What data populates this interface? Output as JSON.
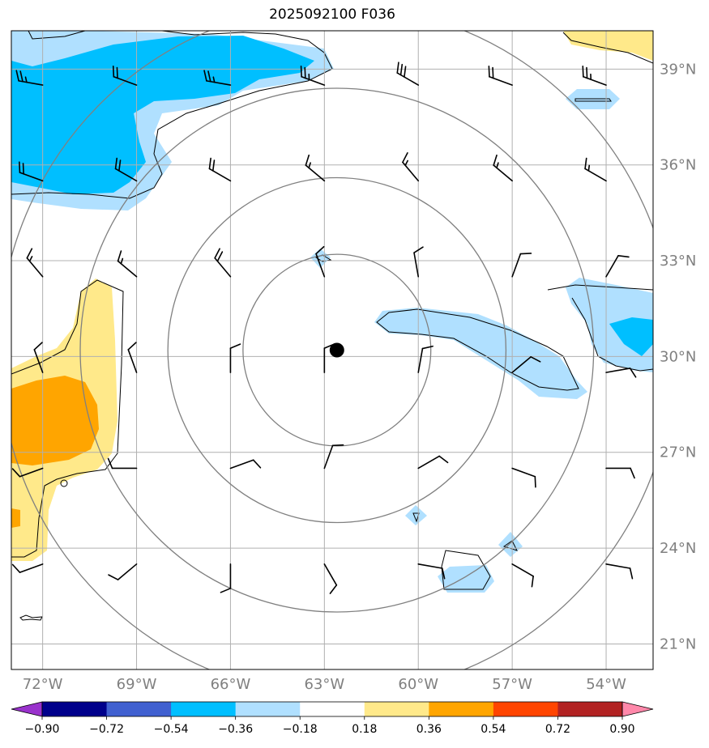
{
  "title": "2025092100 F036",
  "map": {
    "lon_range": [
      -73,
      -52.5
    ],
    "lat_range": [
      20.2,
      40.2
    ],
    "lon_ticks": [
      -72,
      -69,
      -66,
      -63,
      -60,
      -57,
      -54
    ],
    "lon_labels": [
      "72°W",
      "69°W",
      "66°W",
      "63°W",
      "60°W",
      "57°W",
      "54°W"
    ],
    "lat_ticks": [
      21,
      24,
      27,
      30,
      33,
      36,
      39
    ],
    "lat_labels": [
      "21°N",
      "24°N",
      "27°N",
      "30°N",
      "33°N",
      "36°N",
      "39°N"
    ],
    "center": {
      "lon": -62.6,
      "lat": 30.2
    },
    "range_rings_deg": [
      3,
      5.4,
      8.2,
      10.8
    ],
    "colors": {
      "grid": "#b0b0b0",
      "ring": "#808080",
      "center_marker": "#000000",
      "coast": "#000000"
    }
  },
  "colorbar": {
    "levels": [
      -0.9,
      -0.72,
      -0.54,
      -0.36,
      -0.18,
      0.18,
      0.36,
      0.54,
      0.72,
      0.9
    ],
    "tick_labels": [
      "−0.90",
      "−0.72",
      "−0.54",
      "−0.36",
      "−0.18",
      "0.18",
      "0.36",
      "0.54",
      "0.72",
      "0.90"
    ],
    "colors": [
      "#9932cc",
      "#00008b",
      "#4060d0",
      "#00bfff",
      "#b0e0ff",
      "#ffffff",
      "#ffe98a",
      "#ffa500",
      "#ff4500",
      "#b22222",
      "#ff88aa"
    ]
  },
  "wind_barbs": [
    {
      "lon": -72,
      "lat": 38.5,
      "dir": 280,
      "spd": 25
    },
    {
      "lon": -69,
      "lat": 38.5,
      "dir": 290,
      "spd": 20
    },
    {
      "lon": -66,
      "lat": 38.5,
      "dir": 280,
      "spd": 25
    },
    {
      "lon": -63,
      "lat": 38.5,
      "dir": 290,
      "spd": 25
    },
    {
      "lon": -60,
      "lat": 38.5,
      "dir": 300,
      "spd": 30
    },
    {
      "lon": -57,
      "lat": 38.5,
      "dir": 290,
      "spd": 20
    },
    {
      "lon": -54,
      "lat": 38.5,
      "dir": 290,
      "spd": 25
    },
    {
      "lon": -72,
      "lat": 35.5,
      "dir": 290,
      "spd": 20
    },
    {
      "lon": -69,
      "lat": 35.5,
      "dir": 300,
      "spd": 20
    },
    {
      "lon": -66,
      "lat": 35.5,
      "dir": 300,
      "spd": 20
    },
    {
      "lon": -63,
      "lat": 35.5,
      "dir": 310,
      "spd": 15
    },
    {
      "lon": -60,
      "lat": 35.5,
      "dir": 320,
      "spd": 15
    },
    {
      "lon": -57,
      "lat": 35.5,
      "dir": 310,
      "spd": 15
    },
    {
      "lon": -54,
      "lat": 35.5,
      "dir": 300,
      "spd": 15
    },
    {
      "lon": -72,
      "lat": 32.5,
      "dir": 320,
      "spd": 15
    },
    {
      "lon": -69,
      "lat": 32.5,
      "dir": 310,
      "spd": 15
    },
    {
      "lon": -66,
      "lat": 32.5,
      "dir": 320,
      "spd": 20
    },
    {
      "lon": -63,
      "lat": 32.5,
      "dir": 340,
      "spd": 10
    },
    {
      "lon": -60,
      "lat": 32.5,
      "dir": 350,
      "spd": 10
    },
    {
      "lon": -57,
      "lat": 32.5,
      "dir": 20,
      "spd": 10
    },
    {
      "lon": -54,
      "lat": 32.5,
      "dir": 30,
      "spd": 10
    },
    {
      "lon": -72,
      "lat": 29.5,
      "dir": 340,
      "spd": 10
    },
    {
      "lon": -69,
      "lat": 29.5,
      "dir": 340,
      "spd": 10
    },
    {
      "lon": -66,
      "lat": 29.5,
      "dir": 0,
      "spd": 10
    },
    {
      "lon": -63,
      "lat": 29.5,
      "dir": 0,
      "spd": 10
    },
    {
      "lon": -60,
      "lat": 29.5,
      "dir": 10,
      "spd": 10
    },
    {
      "lon": -57,
      "lat": 29.5,
      "dir": 50,
      "spd": 10
    },
    {
      "lon": -54,
      "lat": 29.5,
      "dir": 80,
      "spd": 10
    },
    {
      "lon": -72,
      "lat": 26.5,
      "dir": 250,
      "spd": 10
    },
    {
      "lon": -69,
      "lat": 26.5,
      "dir": 270,
      "spd": 10
    },
    {
      "lon": -66,
      "lat": 26.5,
      "dir": 70,
      "spd": 10
    },
    {
      "lon": -63,
      "lat": 26.5,
      "dir": 20,
      "spd": 10
    },
    {
      "lon": -60,
      "lat": 26.5,
      "dir": 60,
      "spd": 10
    },
    {
      "lon": -57,
      "lat": 26.5,
      "dir": 110,
      "spd": 10
    },
    {
      "lon": -54,
      "lat": 26.5,
      "dir": 90,
      "spd": 10
    },
    {
      "lon": -72,
      "lat": 23.5,
      "dir": 250,
      "spd": 10
    },
    {
      "lon": -69,
      "lat": 23.5,
      "dir": 230,
      "spd": 10
    },
    {
      "lon": -66,
      "lat": 23.5,
      "dir": 180,
      "spd": 10
    },
    {
      "lon": -63,
      "lat": 23.5,
      "dir": 150,
      "spd": 10
    },
    {
      "lon": -60,
      "lat": 23.5,
      "dir": 100,
      "spd": 10
    },
    {
      "lon": -57,
      "lat": 23.5,
      "dir": 120,
      "spd": 10
    },
    {
      "lon": -54,
      "lat": 23.5,
      "dir": 100,
      "spd": 10
    }
  ]
}
